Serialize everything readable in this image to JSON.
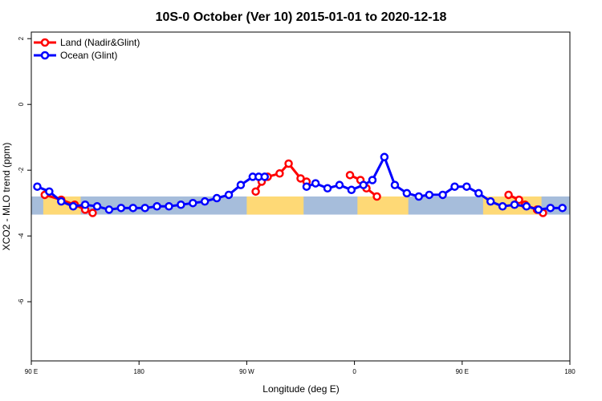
{
  "chart_data": {
    "type": "line",
    "title": "10S-0 October (Ver 10)   2015-01-01 to 2020-12-18",
    "xlabel": "Longitude (deg E)",
    "ylabel": "XCO2 - MLO trend (ppm)",
    "xlim": [
      90,
      450
    ],
    "ylim": [
      -7.8,
      2.2
    ],
    "xticks": [
      90,
      162,
      234,
      306,
      378,
      450
    ],
    "xtick_labels": [
      "90 E",
      "180",
      "90 W",
      "0",
      "90 E",
      "180"
    ],
    "yticks": [
      2,
      0,
      -2,
      -4,
      -6
    ],
    "ytick_labels": [
      "2",
      "0",
      "-2",
      "-4",
      "-6"
    ],
    "grid": false,
    "legend_position": "top-left",
    "background_band": {
      "y_range": [
        -3.35,
        -2.8
      ],
      "ocean_color": "#a6bddb",
      "land_color": "#fed976",
      "land_segments": [
        [
          98,
          123
        ],
        [
          234,
          272
        ],
        [
          308,
          342
        ],
        [
          392,
          431
        ]
      ]
    },
    "series": [
      {
        "name": "Land (Nadir&Glint)",
        "color": "#ff0000",
        "segments": [
          {
            "x": [
              99,
              110,
              119,
              126,
              131
            ],
            "y": [
              -2.75,
              -2.9,
              -3.05,
              -3.2,
              -3.3
            ]
          },
          {
            "x": [
              240,
              244,
              248,
              256,
              262,
              270,
              274
            ],
            "y": [
              -2.65,
              -2.35,
              -2.2,
              -2.1,
              -1.8,
              -2.25,
              -2.35
            ]
          },
          {
            "x": [
              303,
              310,
              314,
              321
            ],
            "y": [
              -2.15,
              -2.3,
              -2.55,
              -2.8
            ]
          },
          {
            "x": [
              409,
              416,
              420,
              428,
              432
            ],
            "y": [
              -2.75,
              -2.9,
              -3.05,
              -3.2,
              -3.3
            ]
          }
        ]
      },
      {
        "name": "Ocean (Glint)",
        "color": "#0000ff",
        "segments": [
          {
            "x": [
              94,
              102,
              110,
              118,
              126,
              134,
              142,
              150,
              158,
              166,
              174,
              182,
              190,
              198,
              206,
              214,
              222,
              230,
              238,
              242,
              246
            ],
            "y": [
              -2.5,
              -2.65,
              -2.95,
              -3.1,
              -3.05,
              -3.1,
              -3.2,
              -3.15,
              -3.15,
              -3.15,
              -3.1,
              -3.1,
              -3.05,
              -3.0,
              -2.95,
              -2.85,
              -2.75,
              -2.45,
              -2.2,
              -2.2,
              -2.2
            ]
          },
          {
            "x": [
              274,
              280,
              288,
              296,
              304,
              312,
              318,
              326,
              333,
              341,
              349,
              356,
              365,
              373,
              381,
              389,
              397,
              405,
              413,
              421,
              429,
              437,
              445
            ],
            "y": [
              -2.5,
              -2.4,
              -2.55,
              -2.45,
              -2.6,
              -2.45,
              -2.3,
              -1.6,
              -2.45,
              -2.7,
              -2.8,
              -2.75,
              -2.75,
              -2.5,
              -2.5,
              -2.7,
              -2.95,
              -3.1,
              -3.05,
              -3.1,
              -3.2,
              -3.15,
              -3.15
            ]
          }
        ]
      }
    ]
  }
}
